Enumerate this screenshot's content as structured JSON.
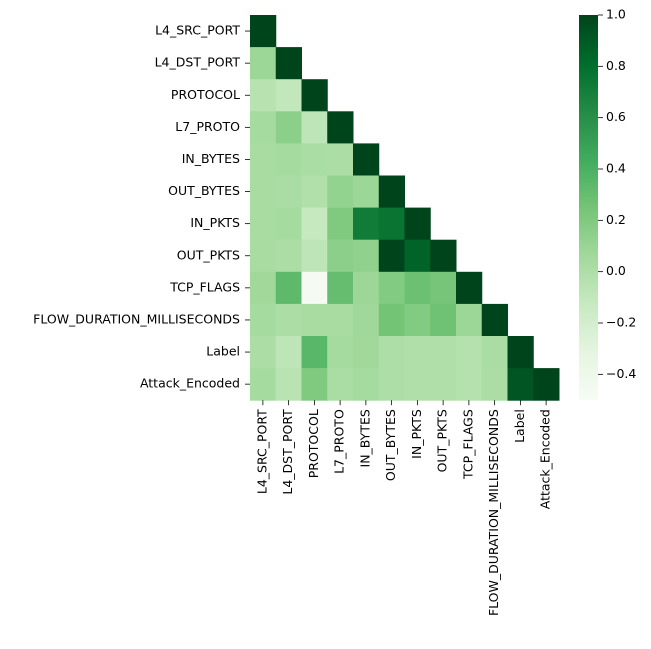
{
  "chart_data": {
    "type": "heatmap",
    "title": "",
    "xlabel": "",
    "ylabel": "",
    "mask": "upper-triangle",
    "colormap": "Greens",
    "colors": {
      "low": "#f7fcf5",
      "high": "#00441b"
    },
    "vmin": -0.5,
    "vmax": 1.0,
    "colorbar_ticks": [
      "1.0",
      "0.8",
      "0.6",
      "0.4",
      "0.2",
      "0.0",
      "−0.2",
      "−0.4"
    ],
    "colorbar_tick_values": [
      1.0,
      0.8,
      0.6,
      0.4,
      0.2,
      0.0,
      -0.2,
      -0.4
    ],
    "labels": [
      "L4_SRC_PORT",
      "L4_DST_PORT",
      "PROTOCOL",
      "L7_PROTO",
      "IN_BYTES",
      "OUT_BYTES",
      "IN_PKTS",
      "OUT_PKTS",
      "TCP_FLAGS",
      "FLOW_DURATION_MILLISECONDS",
      "Label",
      "Attack_Encoded"
    ],
    "matrix": [
      [
        1.0
      ],
      [
        0.08,
        1.0
      ],
      [
        -0.05,
        -0.1,
        1.0
      ],
      [
        0.04,
        0.15,
        -0.08,
        1.0
      ],
      [
        0.03,
        0.04,
        0.02,
        0.01,
        1.0
      ],
      [
        0.03,
        0.02,
        -0.02,
        0.12,
        0.08,
        1.0
      ],
      [
        0.03,
        0.04,
        -0.12,
        0.2,
        0.72,
        0.76,
        1.0
      ],
      [
        0.03,
        0.01,
        -0.08,
        0.15,
        0.13,
        1.0,
        0.86,
        1.0
      ],
      [
        0.06,
        0.33,
        -0.48,
        0.3,
        0.08,
        0.19,
        0.28,
        0.24,
        1.0
      ],
      [
        0.04,
        0.01,
        0.03,
        0.03,
        0.07,
        0.25,
        0.19,
        0.27,
        0.08,
        1.0
      ],
      [
        0.01,
        -0.08,
        0.35,
        0.04,
        0.06,
        0.0,
        -0.01,
        -0.01,
        -0.03,
        0.02,
        1.0
      ],
      [
        0.04,
        -0.06,
        0.2,
        0.02,
        0.04,
        0.0,
        -0.01,
        -0.01,
        -0.03,
        0.01,
        0.92,
        1.0
      ]
    ]
  }
}
